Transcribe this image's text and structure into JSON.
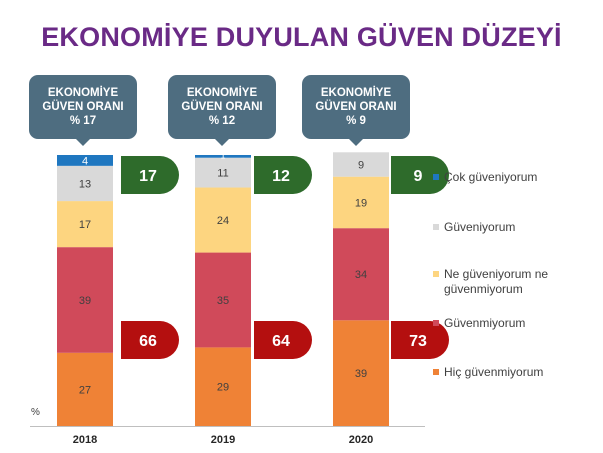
{
  "title": "EKONOMİYE DUYULAN GÜVEN DÜZEYİ",
  "callouts": [
    {
      "line1": "EKONOMİYE",
      "line2": "GÜVEN ORANI",
      "line3": "% 17"
    },
    {
      "line1": "EKONOMİYE",
      "line2": "GÜVEN ORANI",
      "line3": "% 12"
    },
    {
      "line1": "EKONOMİYE",
      "line2": "GÜVEN ORANI",
      "line3": "% 9"
    }
  ],
  "unit_label": "%",
  "colors": {
    "cok_guveniyorum": "#1f77c0",
    "guveniyorum": "#d9d9d9",
    "ne_ne": "#fdd580",
    "guvenmiyorum": "#d04a5a",
    "hic": "#ef8236",
    "trust_badge": "#2e6b2b",
    "distrust_badge": "#b40f0f"
  },
  "chart_data": {
    "type": "bar",
    "stacked": true,
    "categories": [
      "2018",
      "2019",
      "2020"
    ],
    "series": [
      {
        "name": "Hiç güvenmiyorum",
        "values": [
          27,
          29,
          39
        ],
        "color": "#ef8236"
      },
      {
        "name": "Güvenmiyorum",
        "values": [
          39,
          35,
          34
        ],
        "color": "#d04a5a"
      },
      {
        "name": "Ne güveniyorum ne güvenmiyorum",
        "values": [
          17,
          24,
          19
        ],
        "color": "#fdd580"
      },
      {
        "name": "Güveniyorum",
        "values": [
          13,
          11,
          9
        ],
        "color": "#d9d9d9"
      },
      {
        "name": "Çok güveniyorum",
        "values": [
          4,
          1,
          0
        ],
        "color": "#1f77c0"
      }
    ],
    "trust_totals": [
      17,
      12,
      9
    ],
    "distrust_totals": [
      66,
      64,
      73
    ],
    "legend_placement": "right",
    "grid": false,
    "ylim": [
      0,
      100
    ]
  }
}
